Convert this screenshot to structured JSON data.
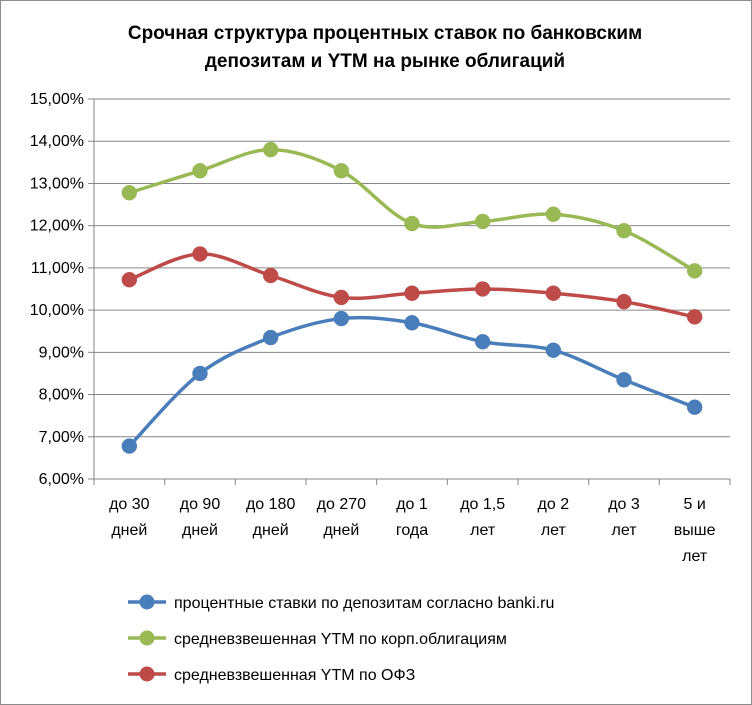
{
  "chart_data": {
    "type": "line",
    "title_lines": [
      "Срочная структура процентных ставок по банковским",
      "депозитам и YTM на рынке облигаций"
    ],
    "categories": [
      [
        "до 30",
        "дней"
      ],
      [
        "до 90",
        "дней"
      ],
      [
        "до 180",
        "дней"
      ],
      [
        "до 270",
        "дней"
      ],
      [
        "до 1",
        "года"
      ],
      [
        "до 1,5",
        "лет"
      ],
      [
        "до 2",
        "лет"
      ],
      [
        "до 3",
        "лет"
      ],
      [
        "5 и",
        "выше",
        "лет"
      ]
    ],
    "ylim": [
      6,
      15
    ],
    "y_step": 1,
    "y_ticks": [
      "6,00%",
      "7,00%",
      "8,00%",
      "9,00%",
      "10,00%",
      "11,00%",
      "12,00%",
      "13,00%",
      "14,00%",
      "15,00%"
    ],
    "grid": true,
    "legend_position": "bottom",
    "smooth": true,
    "series": [
      {
        "name": "процентные ставки по депозитам согласно banki.ru",
        "color": "#4a7ebb",
        "values": [
          6.78,
          8.5,
          9.35,
          9.8,
          9.7,
          9.25,
          9.05,
          8.35,
          7.7
        ]
      },
      {
        "name": "средневзвешенная YTM по корп.облигациям",
        "color": "#98b954",
        "values": [
          12.78,
          13.3,
          13.8,
          13.3,
          12.05,
          12.1,
          12.27,
          11.88,
          10.93
        ]
      },
      {
        "name": "средневзвешенная YTM по ОФЗ",
        "color": "#be4b48",
        "values": [
          10.72,
          11.33,
          10.82,
          10.3,
          10.4,
          10.5,
          10.4,
          10.2,
          9.84
        ]
      }
    ]
  }
}
